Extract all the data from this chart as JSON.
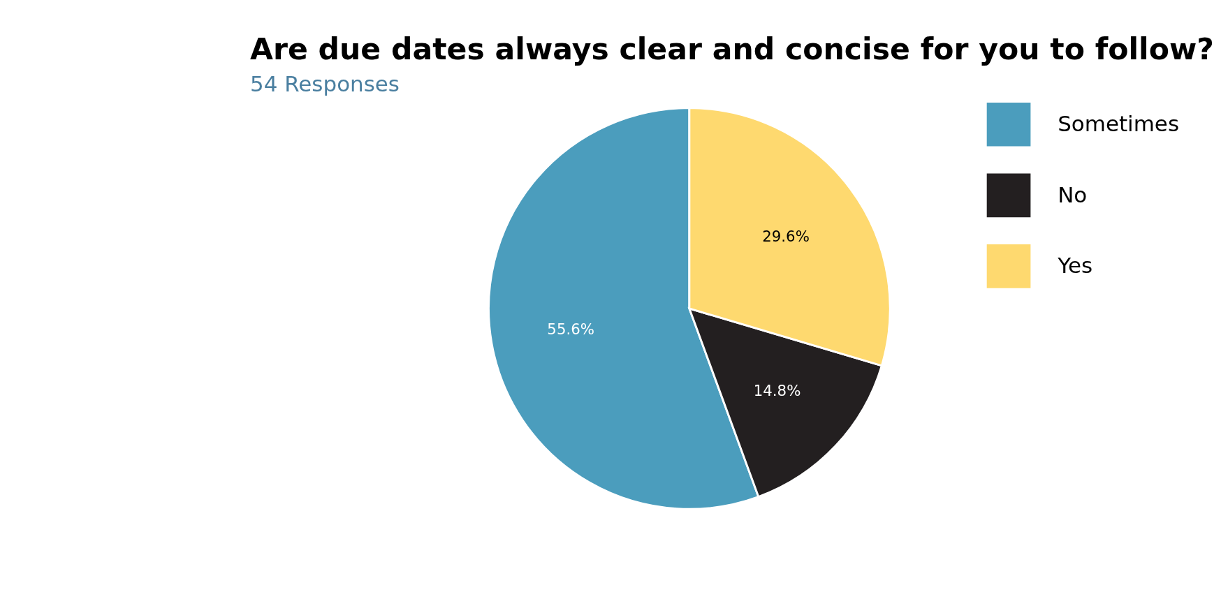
{
  "chart_data": {
    "type": "pie",
    "title": "Are due dates always clear and concise for you to follow?",
    "subtitle": "54 Responses",
    "categories": [
      "Sometimes",
      "No",
      "Yes"
    ],
    "values": [
      55.6,
      14.8,
      29.6
    ],
    "colors": [
      "#4b9dbd",
      "#231f20",
      "#fed96f"
    ],
    "value_labels": [
      "55.6%",
      "14.8%",
      "29.6%"
    ],
    "legend": "right"
  }
}
